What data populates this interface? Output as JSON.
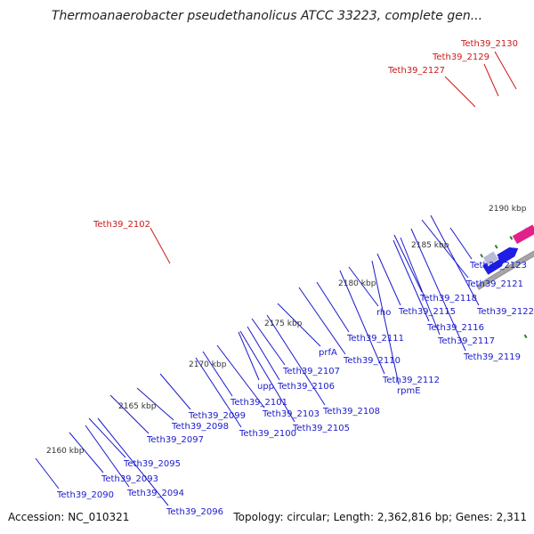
{
  "title": "Thermoanaerobacter pseudethanolicus ATCC 33223, complete gen...",
  "footer": {
    "accession": "Accession: NC_010321",
    "stats": "Topology: circular; Length: 2,362,816 bp; Genes: 2,311"
  },
  "colors": {
    "backbone": "#a6a6a6",
    "forward_gene": "#1e1ee6",
    "reverse_gene": "#f01e1e",
    "label_forward": "#1a1acc",
    "label_reverse": "#cc1a1a",
    "tick": "#2a7a2a"
  },
  "scale_ticks": [
    "2160 kbp",
    "2165 kbp",
    "2170 kbp",
    "2175 kbp",
    "2180 kbp",
    "2185 kbp",
    "2190 kbp"
  ],
  "forward_labels": [
    "Teth39_2090",
    "Teth39_2093",
    "Teth39_2094",
    "Teth39_2096",
    "Teth39_2095",
    "Teth39_2097",
    "Teth39_2098",
    "Teth39_2099",
    "Teth39_2100",
    "Teth39_2101",
    "upp",
    "Teth39_2103",
    "Teth39_2105",
    "Teth39_2106",
    "Teth39_2107",
    "Teth39_2108",
    "prfA",
    "Teth39_2110",
    "Teth39_2111",
    "rho",
    "Teth39_2112",
    "rpmE",
    "Teth39_2115",
    "Teth39_2116",
    "Teth39_2117",
    "Teth39_2118",
    "Teth39_2119",
    "Teth39_2121",
    "Teth39_2122",
    "Teth39_2123"
  ],
  "reverse_labels": [
    "Teth39_2102",
    "Teth39_2127",
    "Teth39_2129",
    "Teth39_2130"
  ]
}
